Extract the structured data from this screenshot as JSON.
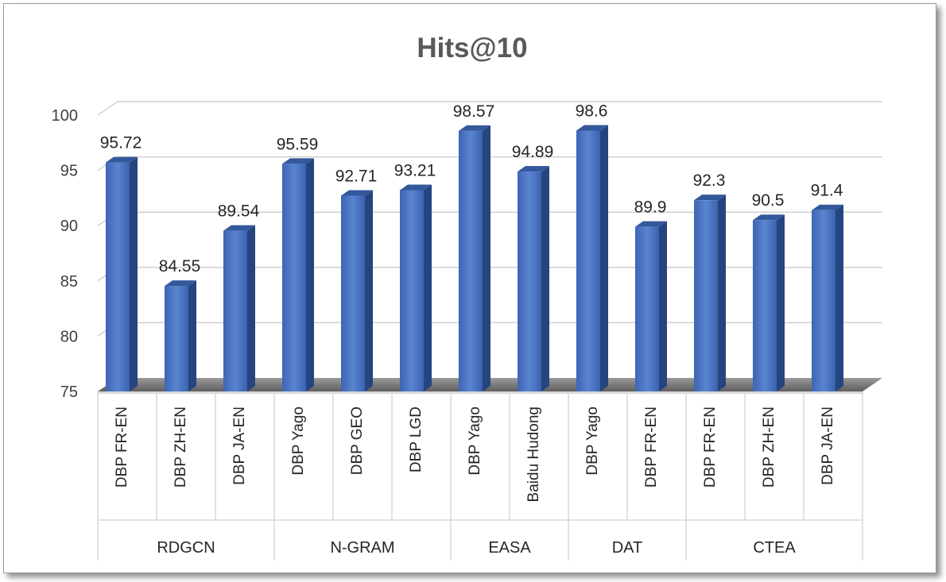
{
  "chart_data": {
    "type": "bar",
    "title": "Hits@10",
    "xlabel": "",
    "ylabel": "",
    "ylim": [
      75,
      100
    ],
    "yticks": [
      75,
      80,
      85,
      90,
      95,
      100
    ],
    "grid": true,
    "legend": "none",
    "bar_color": "#4472C4",
    "groups": [
      {
        "name": "RDGCN",
        "categories": [
          "DBP FR-EN",
          "DBP ZH-EN",
          "DBP JA-EN"
        ],
        "values": [
          95.72,
          84.55,
          89.54
        ]
      },
      {
        "name": "N-GRAM",
        "categories": [
          "DBP Yago",
          "DBP GEO",
          "DBP LGD"
        ],
        "values": [
          95.59,
          92.71,
          93.21
        ]
      },
      {
        "name": "EASA",
        "categories": [
          "DBP Yago",
          "Baidu Hudong"
        ],
        "values": [
          98.57,
          94.89
        ]
      },
      {
        "name": "DAT",
        "categories": [
          "DBP Yago",
          "DBP FR-EN"
        ],
        "values": [
          98.6,
          89.9
        ]
      },
      {
        "name": "CTEA",
        "categories": [
          "DBP FR-EN",
          "DBP ZH-EN",
          "DBP JA-EN"
        ],
        "values": [
          92.3,
          90.5,
          91.4
        ]
      }
    ],
    "value_labels": [
      "95.72",
      "84.55",
      "89.54",
      "95.59",
      "92.71",
      "93.21",
      "98.57",
      "94.89",
      "98.6",
      "89.9",
      "92.3",
      "90.5",
      "91.4"
    ]
  }
}
